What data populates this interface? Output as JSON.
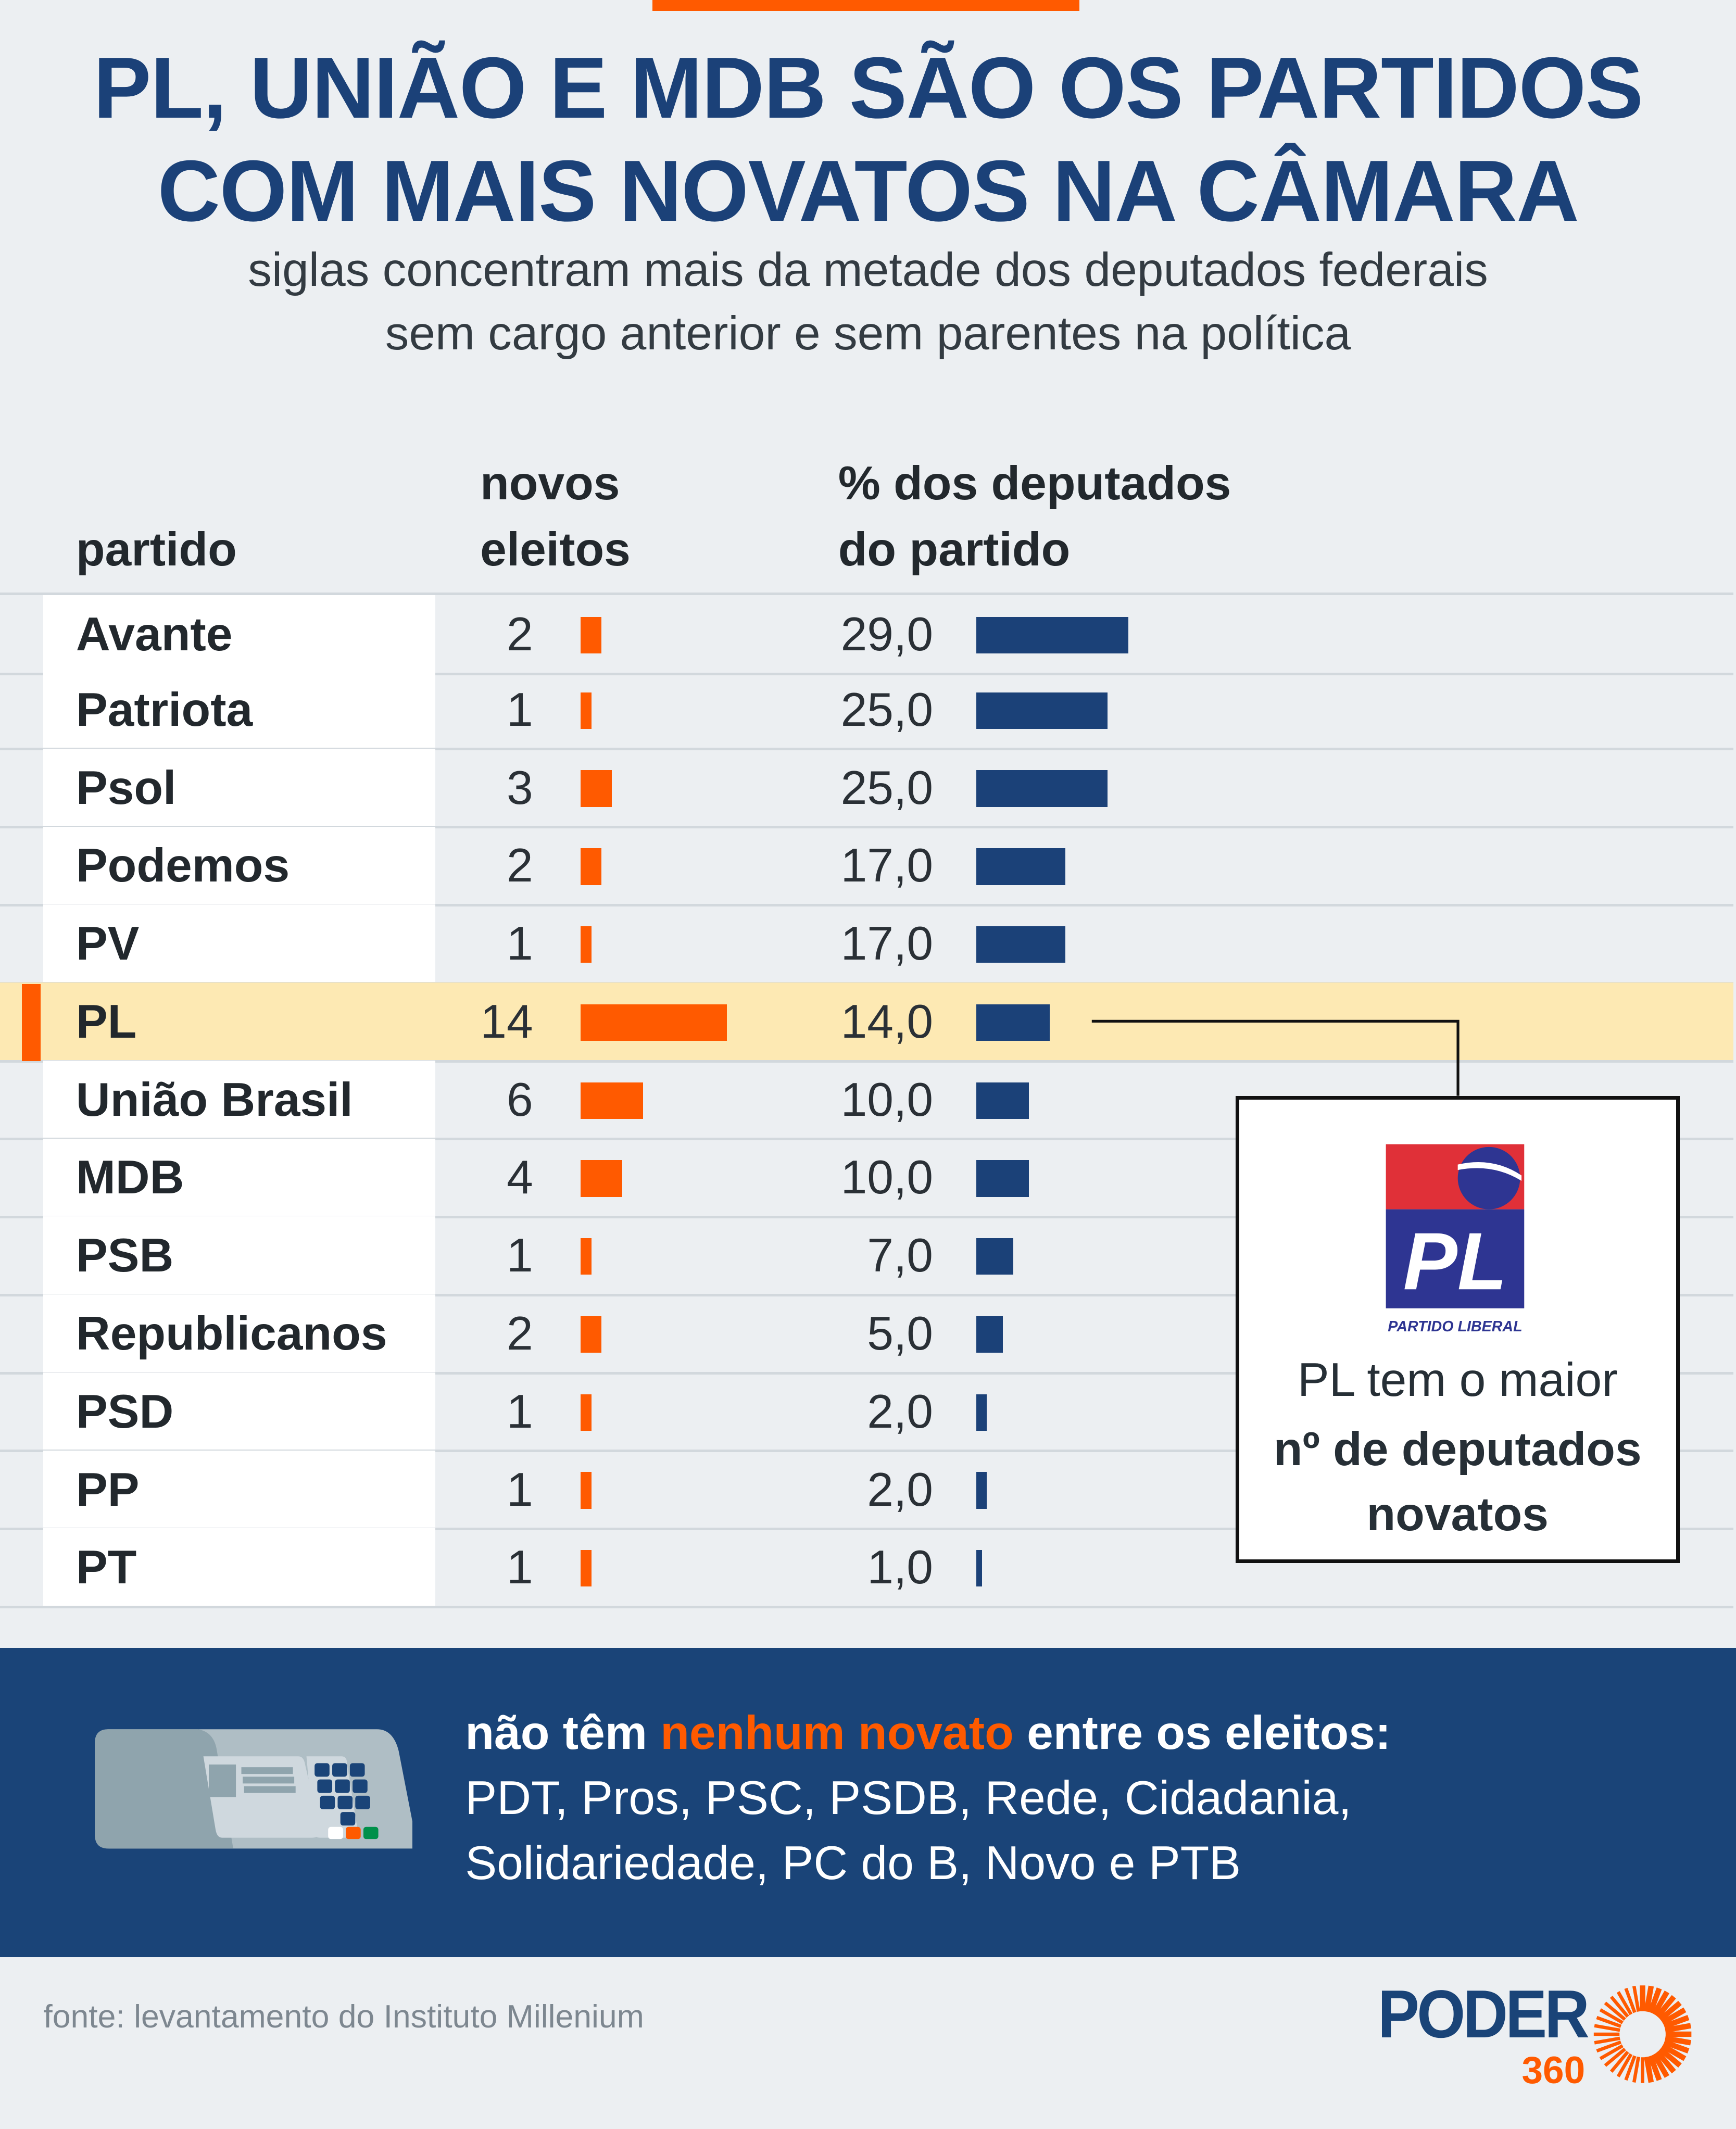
{
  "header": {
    "title_line1": "PL, UNIÃO E MDB SÃO OS PARTIDOS",
    "title_line2": "COM MAIS NOVATOS NA CÂMARA",
    "subtitle_line1": "siglas concentram mais da metade dos deputados federais",
    "subtitle_line2": "sem cargo anterior e sem parentes na política"
  },
  "colors": {
    "accent": "#ff5a00",
    "brand_blue": "#1b4178",
    "highlight": "#fde9b3",
    "background": "#eceff2"
  },
  "chart_data": {
    "type": "table",
    "columns": [
      "partido",
      "novos eleitos",
      "% dos deputados do partido"
    ],
    "column_headers": {
      "partido": "partido",
      "novos_line1": "novos",
      "novos_line2": "eleitos",
      "pct_line1": "% dos deputados",
      "pct_line2": "do partido"
    },
    "rows": [
      {
        "partido": "Avante",
        "novos": 2,
        "novos_label": "2",
        "pct": 29.0,
        "pct_label": "29,0"
      },
      {
        "partido": "Patriota",
        "novos": 1,
        "novos_label": "1",
        "pct": 25.0,
        "pct_label": "25,0"
      },
      {
        "partido": "Psol",
        "novos": 3,
        "novos_label": "3",
        "pct": 25.0,
        "pct_label": "25,0"
      },
      {
        "partido": "Podemos",
        "novos": 2,
        "novos_label": "2",
        "pct": 17.0,
        "pct_label": "17,0"
      },
      {
        "partido": "PV",
        "novos": 1,
        "novos_label": "1",
        "pct": 17.0,
        "pct_label": "17,0"
      },
      {
        "partido": "PL",
        "novos": 14,
        "novos_label": "14",
        "pct": 14.0,
        "pct_label": "14,0",
        "highlight": true
      },
      {
        "partido": "União Brasil",
        "novos": 6,
        "novos_label": "6",
        "pct": 10.0,
        "pct_label": "10,0"
      },
      {
        "partido": "MDB",
        "novos": 4,
        "novos_label": "4",
        "pct": 10.0,
        "pct_label": "10,0"
      },
      {
        "partido": "PSB",
        "novos": 1,
        "novos_label": "1",
        "pct": 7.0,
        "pct_label": "7,0"
      },
      {
        "partido": "Republicanos",
        "novos": 2,
        "novos_label": "2",
        "pct": 5.0,
        "pct_label": "5,0"
      },
      {
        "partido": "PSD",
        "novos": 1,
        "novos_label": "1",
        "pct": 2.0,
        "pct_label": "2,0"
      },
      {
        "partido": "PP",
        "novos": 1,
        "novos_label": "1",
        "pct": 2.0,
        "pct_label": "2,0"
      },
      {
        "partido": "PT",
        "novos": 1,
        "novos_label": "1",
        "pct": 1.0,
        "pct_label": "1,0"
      }
    ],
    "bar_colors": {
      "novos": "#ff5a00",
      "pct": "#1b4178"
    }
  },
  "callout": {
    "logo_text": "PL",
    "logo_caption": "PARTIDO LIBERAL",
    "line1": "PL tem o maior",
    "line2": "nº de deputados",
    "line3": "novatos"
  },
  "banner": {
    "icon": "voting-machine-icon",
    "lead_pre": "não têm ",
    "lead_highlight": "nenhum novato",
    "lead_post": " entre os eleitos:",
    "line2": "PDT, Pros, PSC, PSDB, Rede, Cidadania,",
    "line3": "Solidariedade, PC do B, Novo e PTB"
  },
  "footer": {
    "source": "fonte: levantamento do Instituto Millenium",
    "logo_word": "PODER",
    "logo_number": "360"
  }
}
